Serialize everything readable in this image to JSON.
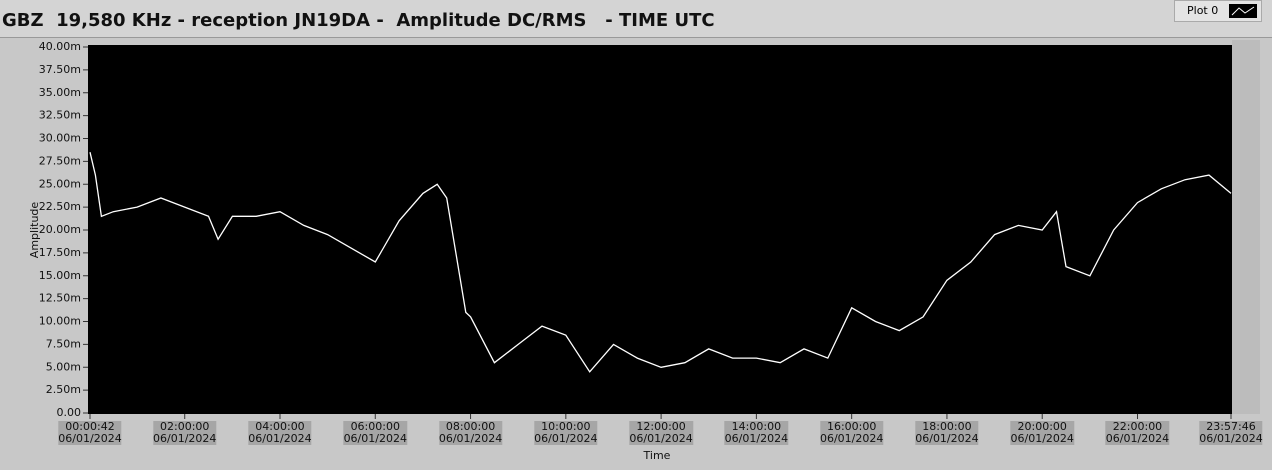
{
  "chart_data": {
    "type": "line",
    "title": "GBZ  19,580 KHz - reception JN19DA -  Amplitude DC/RMS   - TIME UTC",
    "xlabel": "Time",
    "ylabel": "Amplitude",
    "x": [
      42,
      450,
      900,
      1800,
      3600,
      5400,
      7200,
      9000,
      9720,
      10800,
      12600,
      14400,
      16200,
      18000,
      19800,
      21600,
      23400,
      25200,
      26280,
      27000,
      28440,
      28800,
      30600,
      32400,
      34200,
      36000,
      37800,
      39600,
      41400,
      43200,
      45000,
      46800,
      48600,
      50400,
      52200,
      54000,
      55800,
      57600,
      59400,
      61200,
      63000,
      64800,
      66600,
      68400,
      70200,
      72000,
      73080,
      73800,
      75600,
      77400,
      79200,
      81000,
      82800,
      84600,
      86266
    ],
    "series": [
      {
        "name": "Plot 0",
        "color": "#ffffff",
        "values": [
          28.5,
          26,
          21.5,
          22,
          22.5,
          23.5,
          22.5,
          21.5,
          19,
          21.5,
          21.5,
          22,
          20.5,
          19.5,
          18,
          16.5,
          21,
          24,
          25,
          23.5,
          11,
          10.5,
          5.5,
          7.5,
          9.5,
          8.5,
          4.5,
          7.5,
          6,
          5,
          5.5,
          7,
          6,
          6,
          5.5,
          7,
          6,
          11.5,
          10,
          9,
          10.5,
          14.5,
          16.5,
          19.5,
          20.5,
          20,
          22,
          16,
          15,
          20,
          23,
          24.5,
          25.5,
          26,
          24
        ]
      }
    ],
    "xlim": [
      42,
      86266
    ],
    "xticks": [
      {
        "value": 42,
        "label": "00:00:42\n06/01/2024"
      },
      {
        "value": 7200,
        "label": "02:00:00\n06/01/2024"
      },
      {
        "value": 14400,
        "label": "04:00:00\n06/01/2024"
      },
      {
        "value": 21600,
        "label": "06:00:00\n06/01/2024"
      },
      {
        "value": 28800,
        "label": "08:00:00\n06/01/2024"
      },
      {
        "value": 36000,
        "label": "10:00:00\n06/01/2024"
      },
      {
        "value": 43200,
        "label": "12:00:00\n06/01/2024"
      },
      {
        "value": 50400,
        "label": "14:00:00\n06/01/2024"
      },
      {
        "value": 57600,
        "label": "16:00:00\n06/01/2024"
      },
      {
        "value": 64800,
        "label": "18:00:00\n06/01/2024"
      },
      {
        "value": 72000,
        "label": "20:00:00\n06/01/2024"
      },
      {
        "value": 79200,
        "label": "22:00:00\n06/01/2024"
      },
      {
        "value": 86266,
        "label": "23:57:46\n06/01/2024"
      }
    ],
    "ylim": [
      0,
      40
    ],
    "yticks": [
      {
        "value": 0,
        "label": "0.00"
      },
      {
        "value": 2.5,
        "label": "2.50m"
      },
      {
        "value": 5,
        "label": "5.00m"
      },
      {
        "value": 7.5,
        "label": "7.50m"
      },
      {
        "value": 10,
        "label": "10.00m"
      },
      {
        "value": 12.5,
        "label": "12.50m"
      },
      {
        "value": 15,
        "label": "15.00m"
      },
      {
        "value": 17.5,
        "label": "17.50m"
      },
      {
        "value": 20,
        "label": "20.00m"
      },
      {
        "value": 22.5,
        "label": "22.50m"
      },
      {
        "value": 25,
        "label": "25.00m"
      },
      {
        "value": 27.5,
        "label": "27.50m"
      },
      {
        "value": 30,
        "label": "30.00m"
      },
      {
        "value": 32.5,
        "label": "32.50m"
      },
      {
        "value": 35,
        "label": "35.00m"
      },
      {
        "value": 37.5,
        "label": "37.50m"
      },
      {
        "value": 40,
        "label": "40.00m"
      }
    ],
    "background": "#000000"
  }
}
